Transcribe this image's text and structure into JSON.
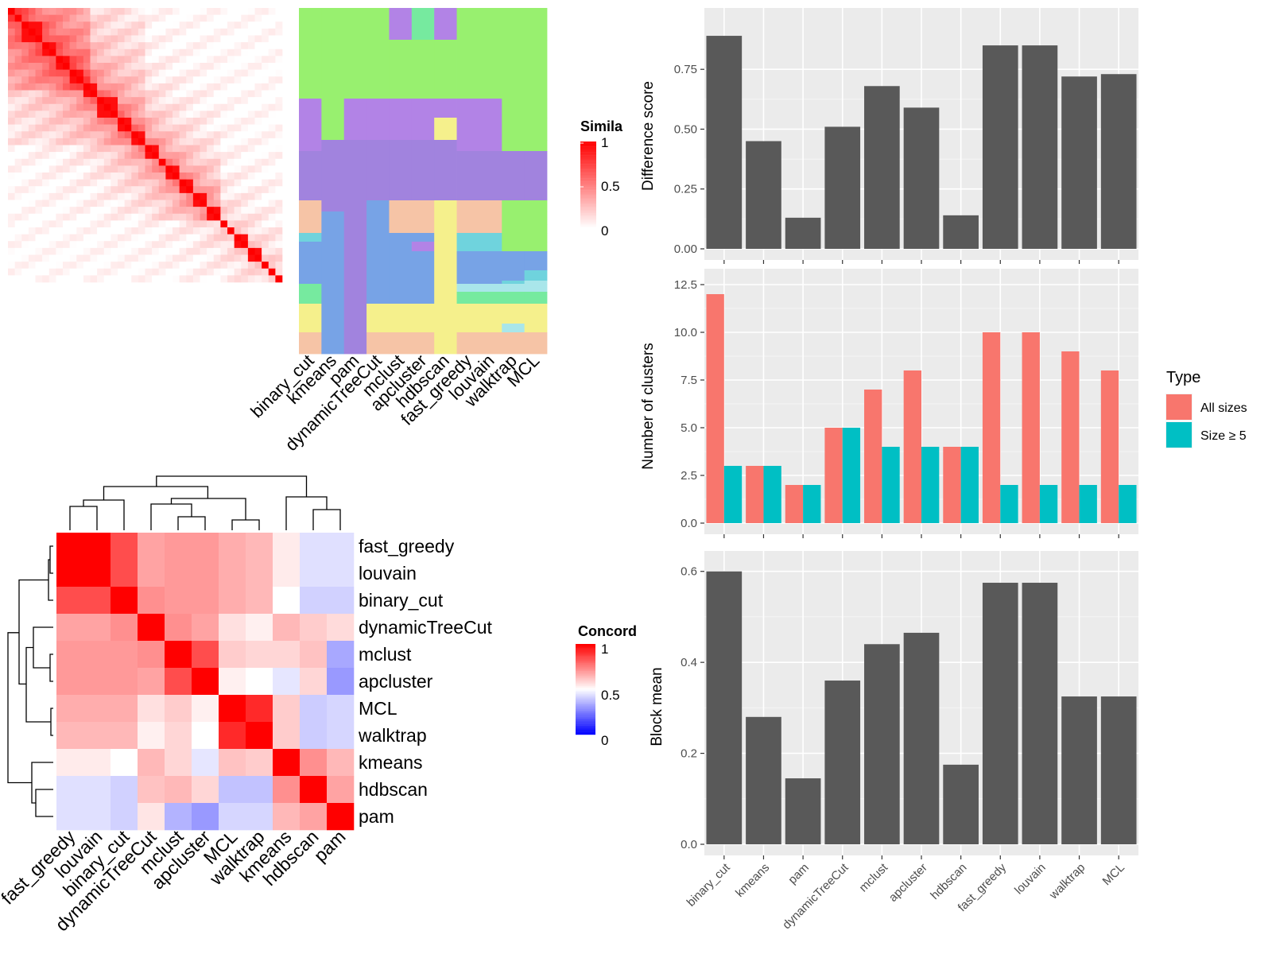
{
  "chart_data": [
    {
      "type": "heatmap",
      "panel": "similarity-matrix",
      "legend_title": "Simila",
      "legend_ticks": [
        "1",
        "0.5",
        "0"
      ],
      "colors": {
        "low": "#ffffff",
        "high": "#ff0000"
      }
    },
    {
      "type": "heatmap",
      "panel": "cluster-assignments",
      "columns": [
        "binary_cut",
        "kmeans",
        "pam",
        "dynamicTreeCut",
        "mclust",
        "apcluster",
        "hdbscan",
        "fast_greedy",
        "louvain",
        "walktrap",
        "MCL"
      ],
      "palette": [
        "#98f06f",
        "#b283e6",
        "#a183de",
        "#f5f08c",
        "#f6c4a6",
        "#77a3e6",
        "#6fd3dd",
        "#76ea9f",
        "#a9e6ea"
      ]
    },
    {
      "type": "heatmap",
      "panel": "concordance",
      "legend_title": "Concord",
      "legend_ticks": [
        "1",
        "0.5",
        "0"
      ],
      "rows": [
        "fast_greedy",
        "louvain",
        "binary_cut",
        "dynamicTreeCut",
        "mclust",
        "apcluster",
        "MCL",
        "walktrap",
        "kmeans",
        "hdbscan",
        "pam"
      ],
      "columns": [
        "fast_greedy",
        "louvain",
        "binary_cut",
        "dynamicTreeCut",
        "mclust",
        "apcluster",
        "MCL",
        "walktrap",
        "kmeans",
        "hdbscan",
        "pam"
      ],
      "values": [
        [
          1.0,
          1.0,
          0.85,
          0.68,
          0.7,
          0.7,
          0.66,
          0.64,
          0.54,
          0.44,
          0.44
        ],
        [
          1.0,
          1.0,
          0.85,
          0.68,
          0.7,
          0.7,
          0.66,
          0.64,
          0.54,
          0.44,
          0.44
        ],
        [
          0.85,
          0.85,
          1.0,
          0.72,
          0.7,
          0.7,
          0.66,
          0.64,
          0.5,
          0.41,
          0.41
        ],
        [
          0.68,
          0.68,
          0.72,
          1.0,
          0.72,
          0.68,
          0.56,
          0.53,
          0.64,
          0.6,
          0.57
        ],
        [
          0.7,
          0.7,
          0.7,
          0.72,
          1.0,
          0.85,
          0.6,
          0.58,
          0.58,
          0.62,
          0.33
        ],
        [
          0.7,
          0.7,
          0.7,
          0.68,
          0.85,
          1.0,
          0.53,
          0.5,
          0.45,
          0.58,
          0.3
        ],
        [
          0.66,
          0.66,
          0.66,
          0.56,
          0.6,
          0.53,
          1.0,
          0.92,
          0.6,
          0.4,
          0.42
        ],
        [
          0.64,
          0.64,
          0.64,
          0.53,
          0.58,
          0.5,
          0.92,
          1.0,
          0.6,
          0.4,
          0.42
        ],
        [
          0.54,
          0.54,
          0.5,
          0.64,
          0.58,
          0.45,
          0.62,
          0.6,
          1.0,
          0.72,
          0.64
        ],
        [
          0.44,
          0.44,
          0.41,
          0.62,
          0.64,
          0.58,
          0.38,
          0.38,
          0.72,
          1.0,
          0.68
        ],
        [
          0.44,
          0.44,
          0.41,
          0.55,
          0.35,
          0.3,
          0.42,
          0.42,
          0.64,
          0.68,
          1.0
        ]
      ],
      "colors": {
        "low": "#0000ff",
        "mid": "#ffffff",
        "high": "#ff0000"
      }
    },
    {
      "type": "bar",
      "panel": "difference-score",
      "categories": [
        "binary_cut",
        "kmeans",
        "pam",
        "dynamicTreeCut",
        "mclust",
        "apcluster",
        "hdbscan",
        "fast_greedy",
        "louvain",
        "walktrap",
        "MCL"
      ],
      "values": [
        0.89,
        0.45,
        0.13,
        0.51,
        0.68,
        0.59,
        0.14,
        0.85,
        0.85,
        0.72,
        0.73
      ],
      "ylabel": "Difference score",
      "ylim": [
        0,
        0.94
      ],
      "yticks": [
        "0.00",
        "0.25",
        "0.50",
        "0.75"
      ]
    },
    {
      "type": "bar",
      "panel": "number-of-clusters",
      "categories": [
        "binary_cut",
        "kmeans",
        "pam",
        "dynamicTreeCut",
        "mclust",
        "apcluster",
        "hdbscan",
        "fast_greedy",
        "louvain",
        "walktrap",
        "MCL"
      ],
      "series": [
        {
          "name": "All sizes",
          "values": [
            12,
            3,
            2,
            5,
            7,
            8,
            4,
            10,
            10,
            9,
            8
          ],
          "color": "#f8766d"
        },
        {
          "name": "Size ≥ 5",
          "values": [
            3,
            3,
            2,
            5,
            4,
            4,
            4,
            2,
            2,
            2,
            2
          ],
          "color": "#00bfc4"
        }
      ],
      "ylabel": "Number of clusters",
      "ylim": [
        0,
        12.5
      ],
      "yticks": [
        "0.0",
        "2.5",
        "5.0",
        "7.5",
        "10.0",
        "12.5"
      ],
      "legend_title": "Type",
      "legend_position": "right"
    },
    {
      "type": "bar",
      "panel": "block-mean",
      "categories": [
        "binary_cut",
        "kmeans",
        "pam",
        "dynamicTreeCut",
        "mclust",
        "apcluster",
        "hdbscan",
        "fast_greedy",
        "louvain",
        "walktrap",
        "MCL"
      ],
      "values": [
        0.6,
        0.28,
        0.145,
        0.36,
        0.44,
        0.465,
        0.175,
        0.575,
        0.575,
        0.325,
        0.325
      ],
      "ylabel": "Block mean",
      "ylim": [
        0,
        0.61
      ],
      "yticks": [
        "0.0",
        "0.2",
        "0.4",
        "0.6"
      ]
    }
  ]
}
